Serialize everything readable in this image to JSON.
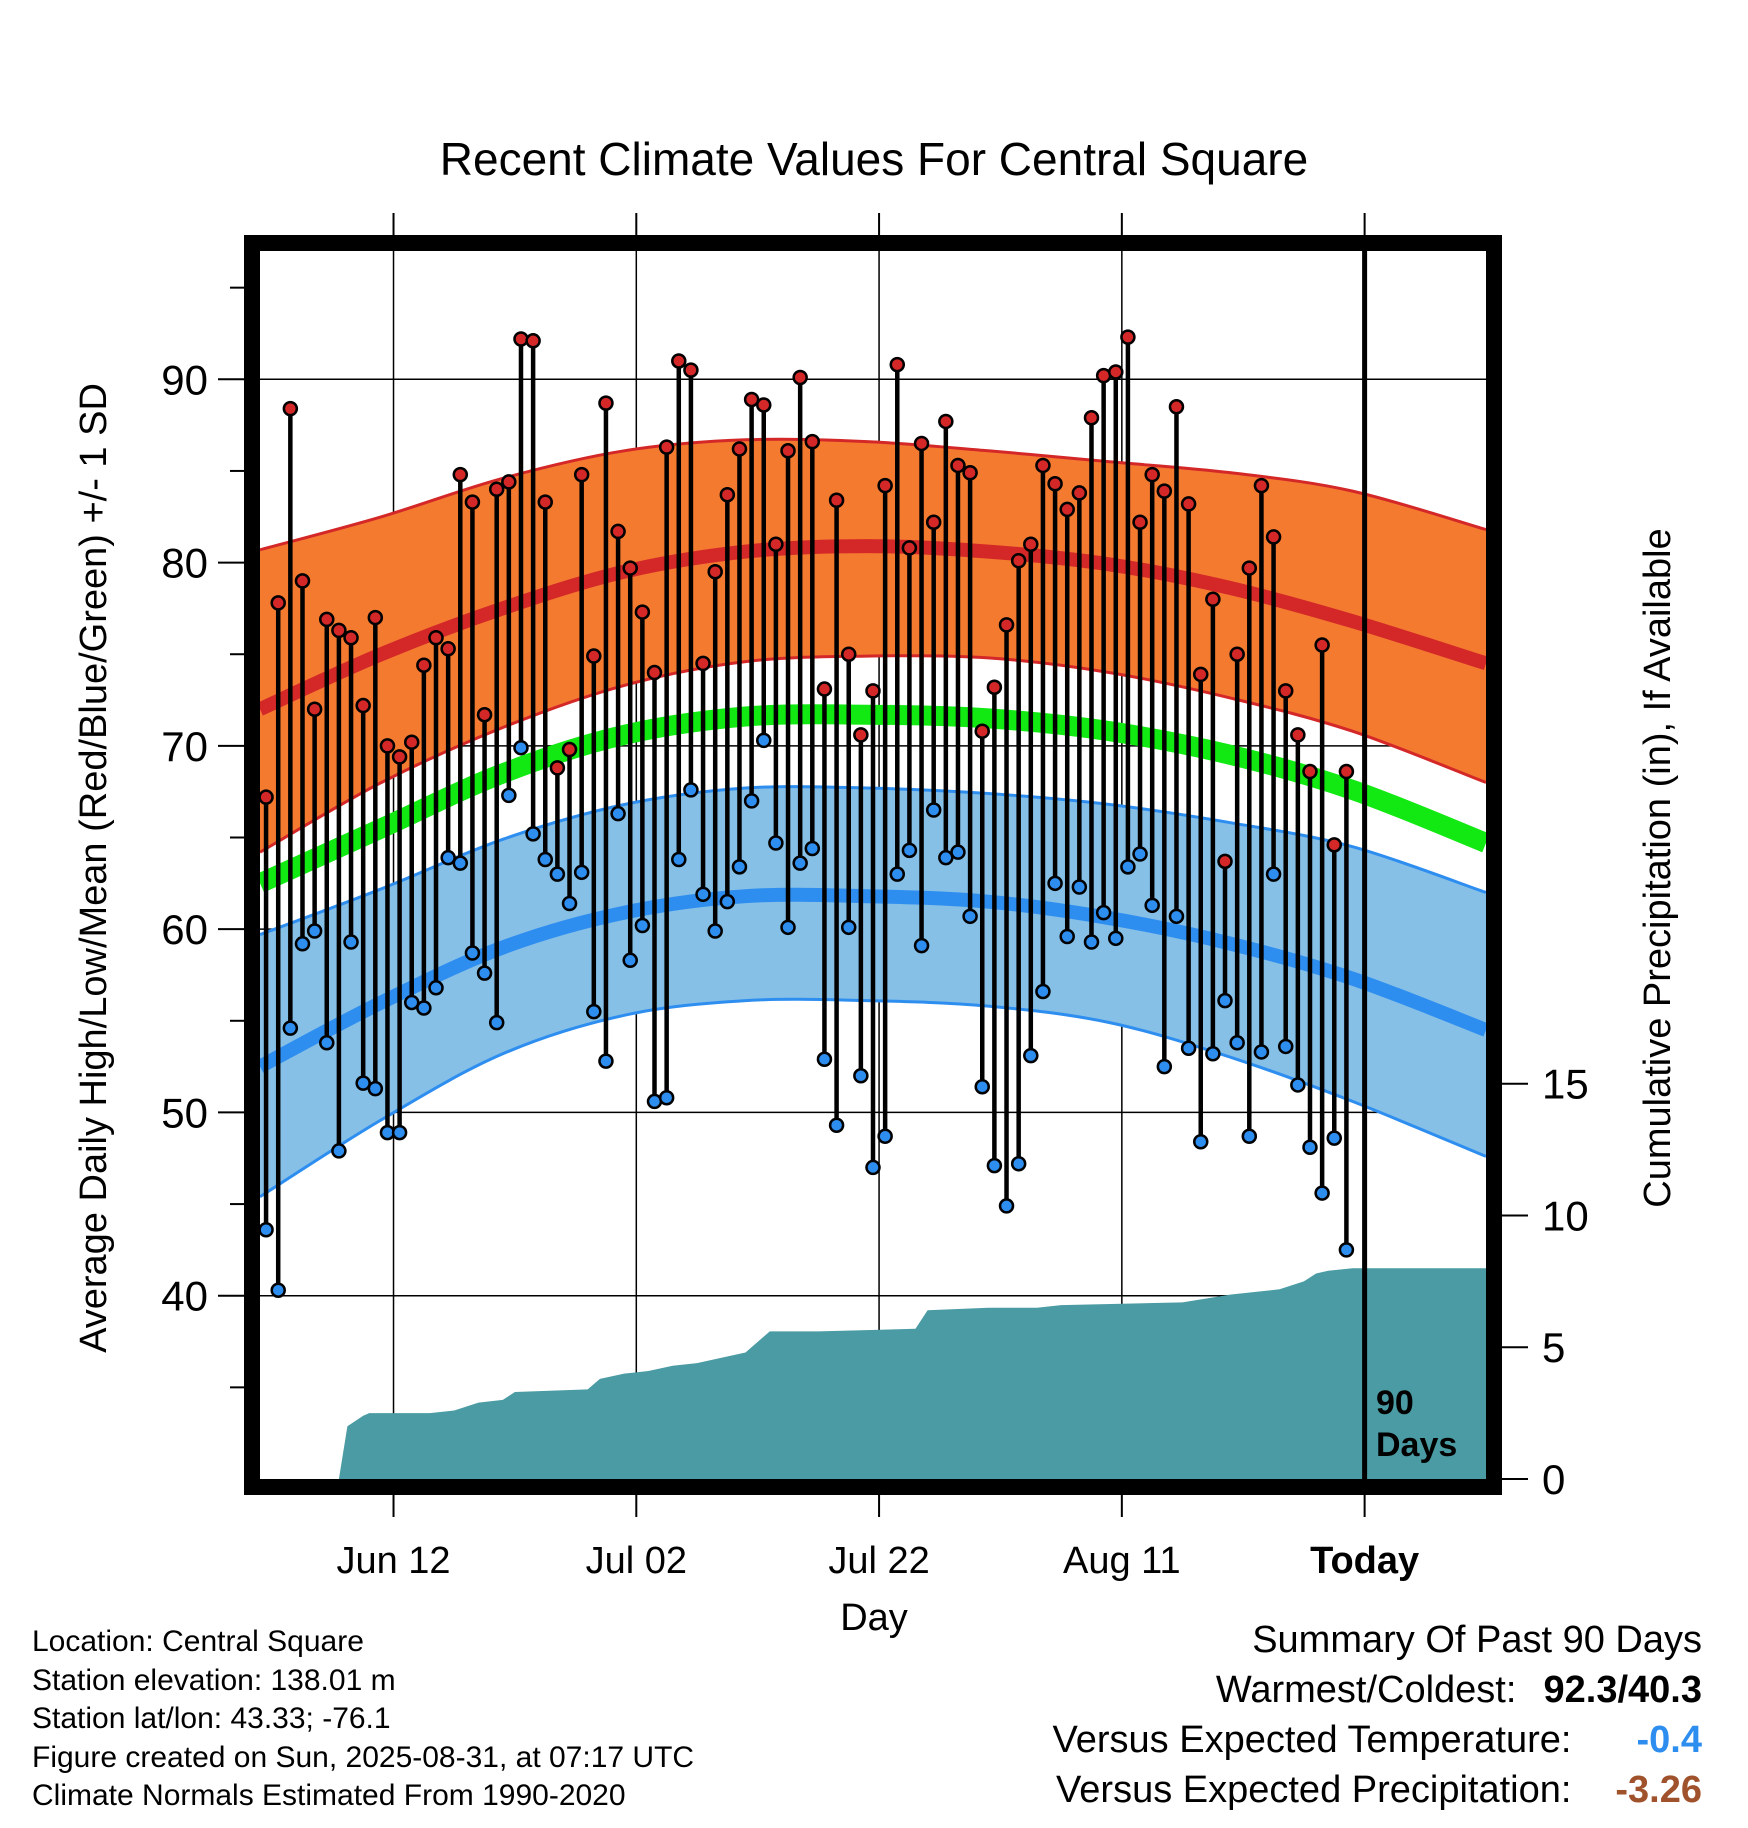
{
  "chart_data": {
    "type": "line",
    "title": "Recent Climate Values For Central Square",
    "xlabel": "Day",
    "ylabel": "Average Daily High/Low/Mean (Red/Blue/Green) +/- 1 SD",
    "y2label": "Cumulative Precipitation (in), If Available",
    "x_tick_labels": [
      "Jun 12",
      "Jul 02",
      "Jul 22",
      "Aug 11",
      "Today"
    ],
    "x_tick_days": [
      11,
      31,
      51,
      71,
      91
    ],
    "x_range_days": [
      0,
      101
    ],
    "ylim": [
      30,
      97
    ],
    "y_ticks": [
      40,
      50,
      60,
      70,
      80,
      90
    ],
    "y2_ticks": [
      0,
      5,
      10,
      15
    ],
    "y2lim": [
      0,
      46.6
    ],
    "today_marker_day": 91,
    "today_marker_label": [
      "90",
      "Days"
    ],
    "grid": true,
    "colors": {
      "high_band": "#f47a30",
      "high_line": "#d42828",
      "low_band": "#86c0e7",
      "low_line": "#2e8ef0",
      "mean_line": "#12e812",
      "precip": "#4a9ba3",
      "daily_high_marker": "#d42828",
      "daily_low_marker": "#2e8ef0"
    },
    "normals": {
      "days": [
        0,
        10,
        20,
        30,
        40,
        50,
        60,
        70,
        80,
        90,
        101
      ],
      "high_mean": [
        72.0,
        75.0,
        77.5,
        79.5,
        80.6,
        80.9,
        80.6,
        79.9,
        78.6,
        76.8,
        74.5
      ],
      "high_upper": [
        80.7,
        82.5,
        84.6,
        86.1,
        86.7,
        86.6,
        86.1,
        85.5,
        84.9,
        83.9,
        81.8
      ],
      "high_lower": [
        64.2,
        68.0,
        71.0,
        73.3,
        74.6,
        74.9,
        74.8,
        74.0,
        72.6,
        70.8,
        68.0
      ],
      "mean_mean": [
        62.5,
        65.5,
        68.5,
        70.6,
        71.6,
        71.7,
        71.5,
        70.8,
        69.5,
        67.6,
        64.7
      ],
      "low_mean": [
        52.5,
        56.0,
        59.0,
        60.9,
        61.8,
        61.8,
        61.5,
        60.6,
        59.2,
        57.3,
        54.5
      ],
      "low_upper": [
        59.7,
        62.2,
        64.9,
        66.8,
        67.7,
        67.7,
        67.4,
        66.8,
        65.8,
        64.5,
        62.0
      ],
      "low_lower": [
        45.4,
        49.6,
        53.2,
        55.3,
        56.1,
        56.1,
        55.8,
        54.9,
        53.0,
        50.6,
        47.6
      ]
    },
    "daily": {
      "start_day": 0,
      "highs": [
        67.2,
        77.8,
        88.4,
        79.0,
        72.0,
        76.9,
        76.3,
        75.9,
        72.2,
        77.0,
        70.0,
        69.4,
        70.2,
        74.4,
        75.9,
        75.3,
        84.8,
        83.3,
        71.7,
        84.0,
        84.4,
        92.2,
        92.1,
        83.3,
        68.8,
        69.8,
        84.8,
        74.9,
        88.7,
        81.7,
        79.7,
        77.3,
        74.0,
        86.3,
        91.0,
        90.5,
        74.5,
        79.5,
        83.7,
        86.2,
        88.9,
        88.6,
        81.0,
        86.1,
        90.1,
        86.6,
        73.1,
        83.4,
        75.0,
        70.6,
        73.0,
        84.2,
        90.8,
        80.8,
        86.5,
        82.2,
        87.7,
        85.3,
        84.9,
        70.8,
        73.2,
        76.6,
        80.1,
        81.0,
        85.3,
        84.3,
        82.9,
        83.8,
        87.9,
        90.2,
        90.4,
        92.3,
        82.2,
        84.8,
        83.9,
        88.5,
        83.2,
        73.9,
        78.0,
        63.7,
        75.0,
        79.7,
        84.2,
        81.4,
        73.0,
        70.6,
        68.6,
        75.5,
        64.6,
        68.6
      ],
      "lows": [
        43.6,
        40.3,
        54.6,
        59.2,
        59.9,
        53.8,
        47.9,
        59.3,
        51.6,
        51.3,
        48.9,
        48.9,
        56.0,
        55.7,
        56.8,
        63.9,
        63.6,
        58.7,
        57.6,
        54.9,
        67.3,
        69.9,
        65.2,
        63.8,
        63.0,
        61.4,
        63.1,
        55.5,
        52.8,
        66.3,
        58.3,
        60.2,
        50.6,
        50.8,
        63.8,
        67.6,
        61.9,
        59.9,
        61.5,
        63.4,
        67.0,
        70.3,
        64.7,
        60.1,
        63.6,
        64.4,
        52.9,
        49.3,
        60.1,
        52.0,
        47.0,
        48.7,
        63.0,
        64.3,
        59.1,
        66.5,
        63.9,
        64.2,
        60.7,
        51.4,
        47.1,
        44.9,
        47.2,
        53.1,
        56.6,
        62.5,
        59.6,
        62.3,
        59.3,
        60.9,
        59.5,
        63.4,
        64.1,
        61.3,
        52.5,
        60.7,
        53.5,
        48.4,
        53.2,
        56.1,
        53.8,
        48.7,
        53.3,
        63.0,
        53.6,
        51.5,
        48.1,
        45.6,
        48.6,
        42.5
      ]
    },
    "precip_cumulative": {
      "days": [
        0,
        6.5,
        7.2,
        8.5,
        9,
        11,
        14,
        16,
        18,
        20,
        21,
        27,
        28,
        30,
        32,
        34,
        36,
        40,
        42,
        46,
        54,
        55,
        60,
        64,
        66,
        76,
        80,
        84,
        86,
        87,
        88,
        90,
        94,
        101
      ],
      "values": [
        0,
        0,
        2.0,
        2.4,
        2.5,
        2.5,
        2.5,
        2.6,
        2.9,
        3.0,
        3.3,
        3.4,
        3.8,
        4.0,
        4.1,
        4.3,
        4.4,
        4.8,
        5.6,
        5.6,
        5.7,
        6.4,
        6.5,
        6.5,
        6.6,
        6.7,
        7.0,
        7.2,
        7.5,
        7.8,
        7.9,
        8.0,
        8.0,
        8.0
      ]
    }
  },
  "info": {
    "location": "Location: Central Square",
    "elevation": "Station elevation: 138.01 m",
    "latlon": "Station lat/lon: 43.33; -76.1",
    "created": "Figure created on Sun, 2025-08-31, at 07:17 UTC",
    "normals": "Climate Normals Estimated From 1990-2020"
  },
  "summary": {
    "heading": "Summary Of Past 90 Days",
    "warm_cold_label": "Warmest/Coldest:",
    "warm_cold_value": "92.3/40.3",
    "temp_label": "Versus Expected Temperature:",
    "temp_value": "-0.4",
    "temp_color": "#2e8ef0",
    "precip_label": "Versus Expected Precipitation:",
    "precip_value": "-3.26",
    "precip_color": "#a0522d"
  }
}
